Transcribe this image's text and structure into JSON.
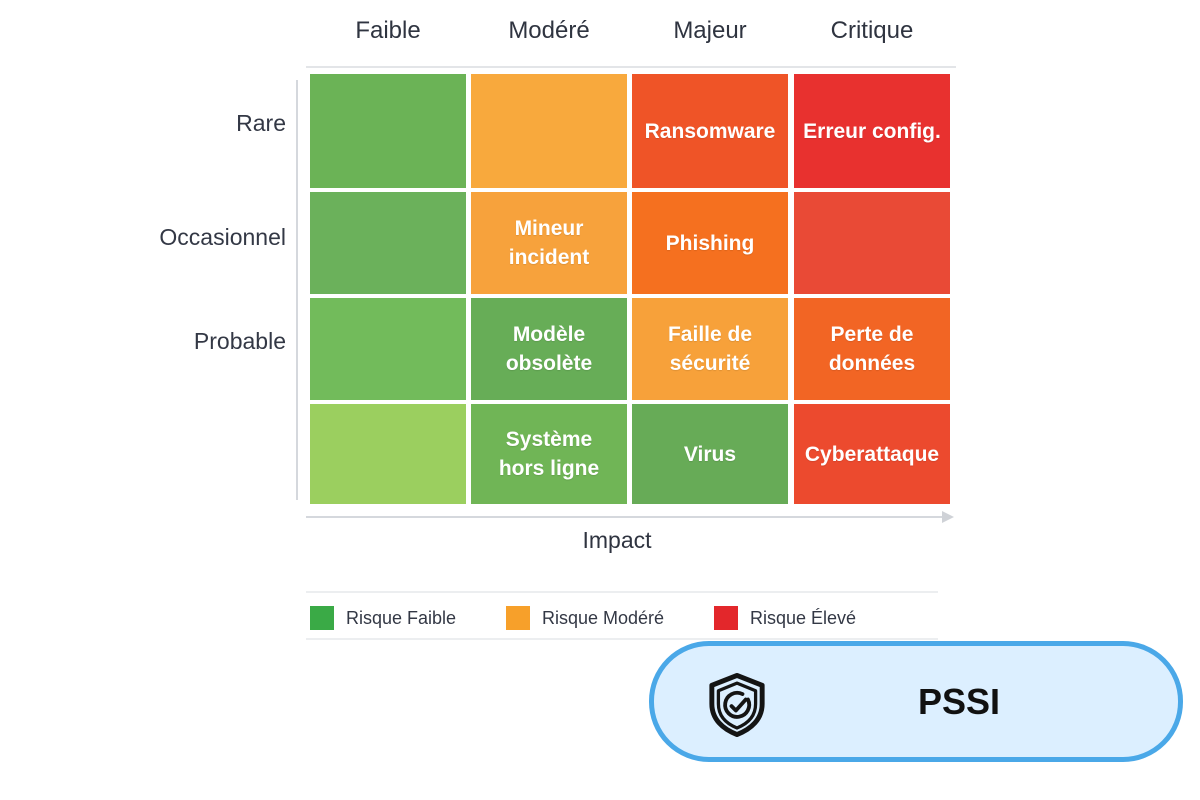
{
  "matrix": {
    "columns": [
      "Faible",
      "Modéré",
      "Majeur",
      "Critique"
    ],
    "rows": [
      "Rare",
      "Occasionnel",
      "Probable",
      ""
    ],
    "x_axis_title": "Impact",
    "cells": [
      [
        {
          "label": "",
          "color": "#6bb356"
        },
        {
          "label": "",
          "color": "#f8a93d"
        },
        {
          "label": "Ransomware",
          "color": "#ef5427"
        },
        {
          "label": "Erreur config.",
          "color": "#e8312f"
        }
      ],
      [
        {
          "label": "",
          "color": "#6bb15b"
        },
        {
          "label": "Mineur\nincident",
          "color": "#f7a23c"
        },
        {
          "label": "Phishing",
          "color": "#f5701f"
        },
        {
          "label": "",
          "color": "#e94a36"
        }
      ],
      [
        {
          "label": "",
          "color": "#72bb5b"
        },
        {
          "label": "Modèle\nobsolète",
          "color": "#67ad57"
        },
        {
          "label": "Faille de\nsécurité",
          "color": "#f7a13a"
        },
        {
          "label": "Perte de\ndonnées",
          "color": "#f26524"
        }
      ],
      [
        {
          "label": "",
          "color": "#9bcf5f"
        },
        {
          "label": "Système\nhors ligne",
          "color": "#70b556"
        },
        {
          "label": "Virus",
          "color": "#67ab57"
        },
        {
          "label": "Cyberattaque",
          "color": "#ec4a2e"
        }
      ]
    ]
  },
  "legend": [
    {
      "label": "Risque Faible",
      "color": "#3aaa46"
    },
    {
      "label": "Risque Modéré",
      "color": "#f7a02a"
    },
    {
      "label": "Risque Élevé",
      "color": "#e3272b"
    }
  ],
  "badge": {
    "text": "PSSI",
    "icon": "shield-check-icon",
    "border_color": "#4aa8e8",
    "fill_color": "#dcefff"
  }
}
